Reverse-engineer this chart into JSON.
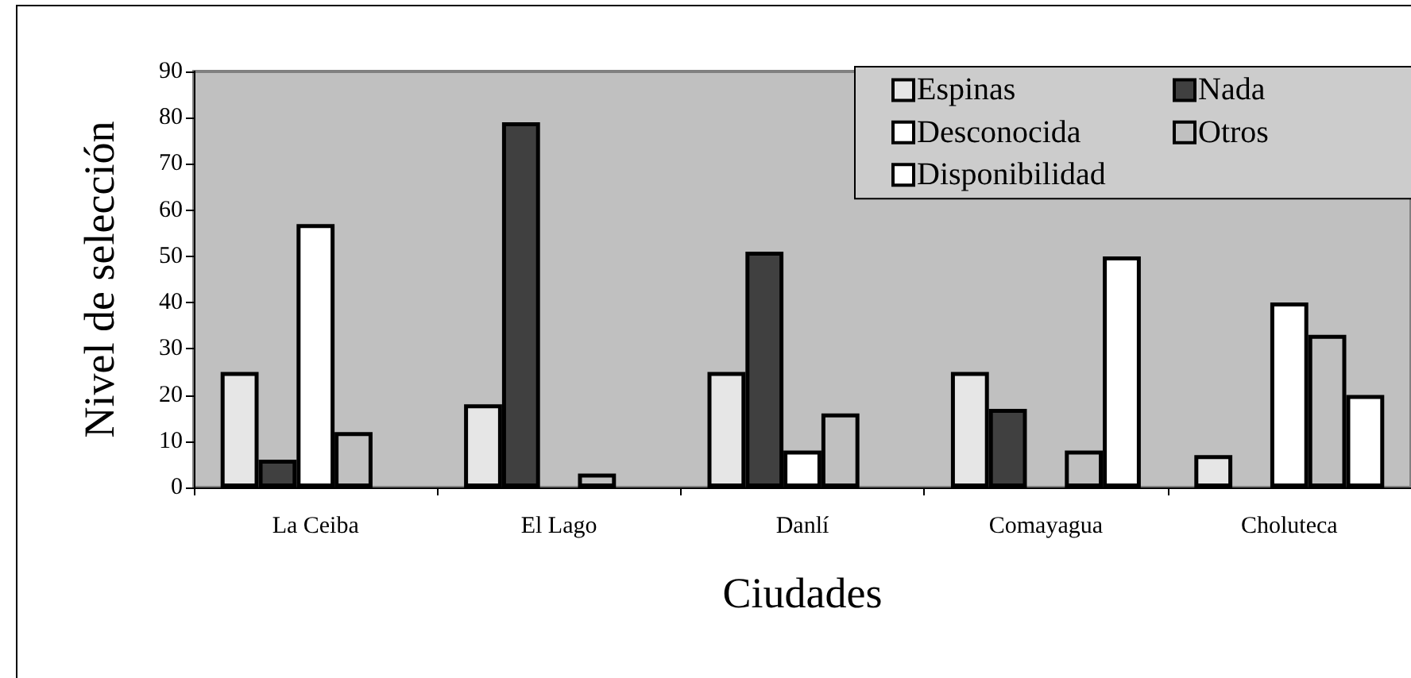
{
  "chart_data": {
    "type": "bar",
    "categories": [
      "La Ceiba",
      "El Lago",
      "Danlí",
      "Comayagua",
      "Choluteca"
    ],
    "series": [
      {
        "name": "Espinas",
        "color": "#e6e6e6",
        "values": [
          25,
          18,
          25,
          25,
          7
        ]
      },
      {
        "name": "Nada",
        "color": "#404040",
        "values": [
          6,
          79,
          51,
          17,
          null
        ]
      },
      {
        "name": "Desconocida",
        "color": "#ffffff",
        "values": [
          57,
          null,
          8,
          null,
          40
        ]
      },
      {
        "name": "Otros",
        "color": "#c0c0c0",
        "values": [
          12,
          3,
          16,
          8,
          33
        ]
      },
      {
        "name": "Disponibilidad",
        "color": "#ffffff",
        "values": [
          null,
          null,
          null,
          50,
          20
        ]
      }
    ],
    "xlabel": "Ciudades",
    "ylabel": "Nivel de selección",
    "ylim": [
      0,
      90
    ],
    "yticks": [
      0,
      10,
      20,
      30,
      40,
      50,
      60,
      70,
      80,
      90
    ],
    "legend": "top right"
  }
}
